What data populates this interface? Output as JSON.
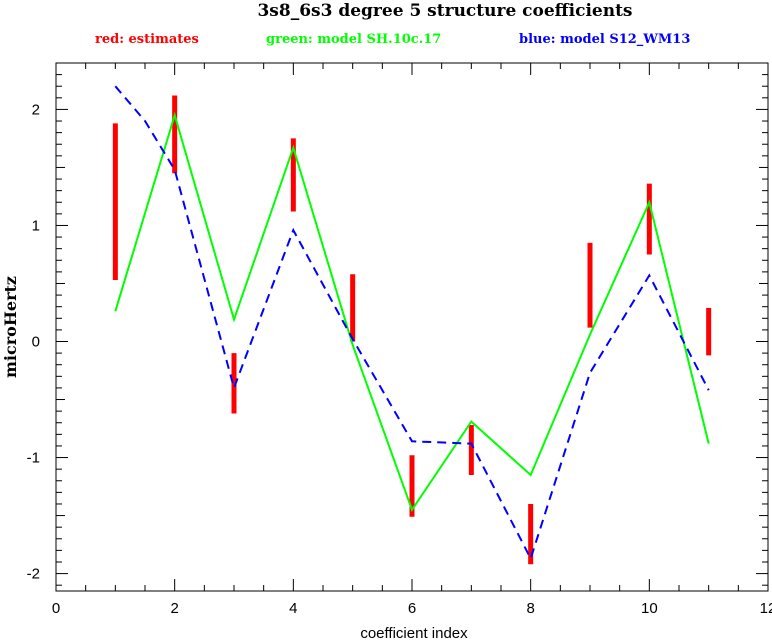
{
  "chart_data": {
    "type": "line",
    "title": "3s8_6s3 degree 5 structure coefficients",
    "xlabel": "coefficient index",
    "ylabel": "microHertz",
    "xlim": [
      0,
      12
    ],
    "ylim": [
      -2.15,
      2.4
    ],
    "x_ticks": [
      0,
      2,
      4,
      6,
      8,
      10,
      12
    ],
    "y_ticks": [
      -2,
      -1,
      0,
      1,
      2
    ],
    "grid": false,
    "legend_position": "top",
    "error_bars": {
      "name": "red: estimates",
      "color": "#ff0000",
      "x": [
        1,
        2,
        3,
        4,
        5,
        6,
        7,
        8,
        9,
        10,
        11
      ],
      "low": [
        0.53,
        1.45,
        -0.62,
        1.12,
        0.0,
        -1.51,
        -1.15,
        -1.92,
        0.12,
        0.75,
        -0.12
      ],
      "high": [
        1.88,
        2.12,
        -0.1,
        1.75,
        0.58,
        -0.98,
        -0.72,
        -1.4,
        0.85,
        1.36,
        0.29
      ]
    },
    "series": [
      {
        "name": "green: model SH.10c.17",
        "color": "#00ff00",
        "style": "solid",
        "x": [
          1,
          2,
          3,
          4,
          5,
          6,
          7,
          8,
          9,
          10,
          11
        ],
        "values": [
          0.26,
          1.95,
          0.19,
          1.67,
          -0.03,
          -1.45,
          -0.69,
          -1.15,
          0.06,
          1.2,
          -0.88
        ]
      },
      {
        "name": "blue: model S12_WM13",
        "color": "#0000ff",
        "style": "dashed",
        "x": [
          1,
          1.5,
          2,
          3,
          4,
          5,
          6,
          7,
          8,
          9,
          10,
          11
        ],
        "values": [
          2.2,
          1.9,
          1.48,
          -0.4,
          0.96,
          0.02,
          -0.86,
          -0.88,
          -1.87,
          -0.27,
          0.57,
          -0.42
        ]
      }
    ]
  }
}
